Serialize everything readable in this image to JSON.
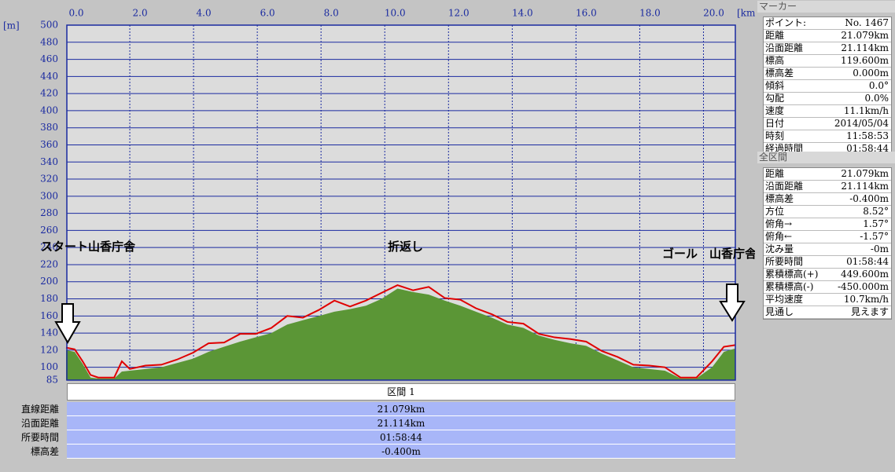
{
  "chart_data": {
    "type": "area",
    "x_label": "[km]",
    "y_label": "[m]",
    "x": [
      0,
      0.27,
      0.52,
      0.77,
      1.01,
      1.51,
      1.75,
      2.0,
      2.49,
      2.99,
      3.48,
      3.98,
      4.47,
      4.96,
      5.46,
      5.95,
      6.44,
      6.94,
      7.43,
      7.93,
      8.42,
      8.91,
      9.41,
      9.9,
      10.4,
      10.89,
      11.38,
      11.88,
      12.37,
      12.86,
      13.36,
      13.85,
      14.35,
      14.84,
      15.33,
      15.83,
      16.32,
      16.81,
      17.31,
      17.8,
      18.3,
      18.79,
      19.28,
      19.78,
      20.27,
      20.64,
      21.0
    ],
    "series": [
      {
        "style": "area",
        "color": "#5b9636",
        "values": [
          120,
          118,
          104,
          88,
          87,
          87,
          95,
          96,
          98,
          100,
          105,
          110,
          118,
          124,
          130,
          135,
          140,
          150,
          155,
          160,
          165,
          168,
          172,
          180,
          192,
          188,
          185,
          178,
          172,
          165,
          158,
          150,
          146,
          137,
          132,
          128,
          125,
          116,
          108,
          100,
          98,
          96,
          87,
          87,
          100,
          118,
          122
        ]
      },
      {
        "style": "line",
        "color": "#e00000",
        "values": [
          123,
          121,
          107,
          91,
          88,
          88,
          107,
          98,
          102,
          103,
          109,
          117,
          128,
          129,
          139,
          139,
          146,
          160,
          158,
          167,
          178,
          171,
          178,
          187,
          196,
          190,
          194,
          181,
          179,
          169,
          162,
          153,
          151,
          139,
          135,
          133,
          130,
          119,
          112,
          103,
          102,
          100,
          88,
          88,
          107,
          124,
          126
        ]
      }
    ],
    "xlim": [
      0,
      21
    ],
    "ylim": [
      85,
      500
    ],
    "xticks": [
      {
        "value": 0,
        "label": "0.0"
      },
      {
        "value": 2,
        "label": "2.0"
      },
      {
        "value": 4,
        "label": "4.0"
      },
      {
        "value": 6,
        "label": "6.0"
      },
      {
        "value": 8,
        "label": "8.0"
      },
      {
        "value": 10,
        "label": "10.0"
      },
      {
        "value": 12,
        "label": "12.0"
      },
      {
        "value": 14,
        "label": "14.0"
      },
      {
        "value": 16,
        "label": "16.0"
      },
      {
        "value": 18,
        "label": "18.0"
      },
      {
        "value": 20,
        "label": "20.0"
      }
    ],
    "yticks": [
      85,
      100,
      120,
      140,
      160,
      180,
      200,
      220,
      240,
      260,
      280,
      300,
      320,
      340,
      360,
      380,
      400,
      420,
      440,
      460,
      480,
      500
    ],
    "grid": true,
    "annotations": [
      "スタート山香庁舎",
      "折返し",
      "ゴール　山香庁舎"
    ]
  },
  "section_table": {
    "header": "区間 1",
    "rows": [
      [
        "直線距離",
        "21.079km"
      ],
      [
        "沿面距離",
        "21.114km"
      ],
      [
        "所要時間",
        "01:58:44"
      ],
      [
        "標高差",
        "-0.400m"
      ]
    ]
  },
  "marker_panel": {
    "title": "マーカー",
    "rows": [
      [
        "ポイント:",
        "No. 1467"
      ],
      [
        "距離",
        "21.079km"
      ],
      [
        "沿面距離",
        "21.114km"
      ],
      [
        "標高",
        "119.600m"
      ],
      [
        "標高差",
        "0.000m"
      ],
      [
        "傾斜",
        "0.0°"
      ],
      [
        "勾配",
        "0.0%"
      ],
      [
        "速度",
        "11.1km/h"
      ],
      [
        "日付",
        "2014/05/04"
      ],
      [
        "時刻",
        "11:58:53"
      ],
      [
        "経過時間",
        "01:58:44"
      ]
    ]
  },
  "total_panel": {
    "title": "全区間",
    "rows": [
      [
        "距離",
        "21.079km"
      ],
      [
        "沿面距離",
        "21.114km"
      ],
      [
        "標高差",
        "-0.400m"
      ],
      [
        "方位",
        "8.52°"
      ],
      [
        "俯角→",
        "1.57°"
      ],
      [
        "俯角←",
        "-1.57°"
      ],
      [
        "沈み量",
        "-0m"
      ],
      [
        "所要時間",
        "01:58:44"
      ],
      [
        "累積標高(+)",
        "449.600m"
      ],
      [
        "累積標高(-)",
        "-450.000m"
      ],
      [
        "平均速度",
        "10.7km/h"
      ],
      [
        "見通し",
        "見えます"
      ]
    ]
  }
}
